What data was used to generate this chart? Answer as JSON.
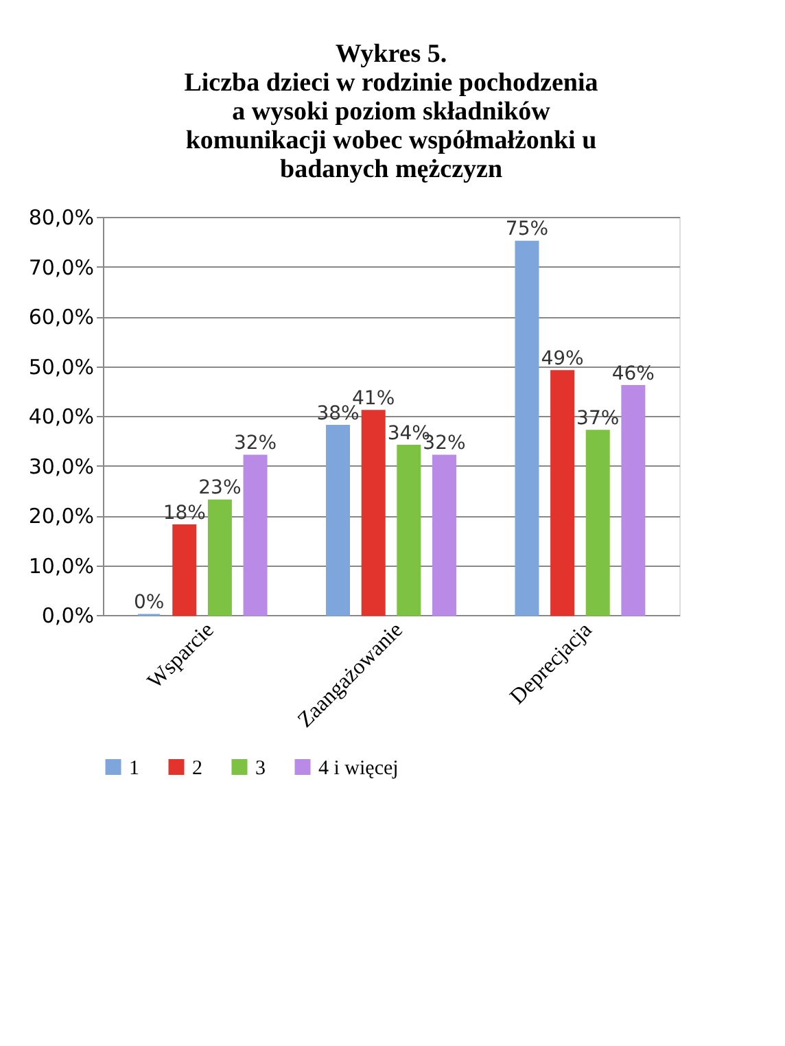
{
  "chart_data": {
    "type": "bar",
    "title": "Wykres 5.\nLiczba dzieci  w rodzinie pochodzenia\na wysoki poziom składników\nkomunikacji wobec współmałżonki u\nbadanych mężczyzn",
    "categories": [
      "Wsparcie",
      "Zaangażowanie",
      "Deprecjacja"
    ],
    "series": [
      {
        "name": "1",
        "color": "#7ea6dc",
        "values": [
          0,
          38,
          75
        ],
        "value_labels": [
          "0%",
          "38%",
          "75%"
        ]
      },
      {
        "name": "2",
        "color": "#e2342c",
        "values": [
          18,
          41,
          49
        ],
        "value_labels": [
          "18%",
          "41%",
          "49%"
        ]
      },
      {
        "name": "3",
        "color": "#7dc242",
        "values": [
          23,
          34,
          37
        ],
        "value_labels": [
          "23%",
          "34%",
          "37%"
        ]
      },
      {
        "name": "4 i więcej",
        "color": "#b98be6",
        "values": [
          32,
          32,
          46
        ],
        "value_labels": [
          "32%",
          "32%",
          "46%"
        ]
      }
    ],
    "ylim": [
      0,
      80
    ],
    "yticks": [
      {
        "value": 0,
        "label": "0,0%"
      },
      {
        "value": 10,
        "label": "10,0%"
      },
      {
        "value": 20,
        "label": "20,0%"
      },
      {
        "value": 30,
        "label": "30,0%"
      },
      {
        "value": 40,
        "label": "40,0%"
      },
      {
        "value": 50,
        "label": "50,0%"
      },
      {
        "value": 60,
        "label": "60,0%"
      },
      {
        "value": 70,
        "label": "70,0%"
      },
      {
        "value": 80,
        "label": "80,0%"
      }
    ],
    "grid": "y",
    "legend": "bottom"
  }
}
